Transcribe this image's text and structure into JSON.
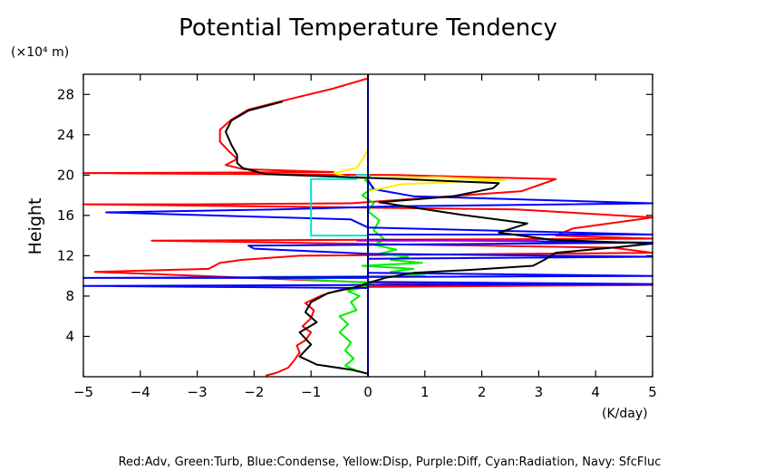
{
  "chart_data": {
    "type": "line",
    "title": "Potential Temperature Tendency",
    "ylabel": "Height",
    "y_unit": "(×10⁴ m)",
    "x_unit": "(K/day)",
    "xlim": [
      -5,
      5
    ],
    "ylim": [
      0,
      30
    ],
    "x_ticks": [
      -5,
      -4,
      -3,
      -2,
      -1,
      0,
      1,
      2,
      3,
      4,
      5
    ],
    "y_ticks": [
      4,
      8,
      12,
      16,
      20,
      24,
      28
    ],
    "grid": false,
    "legend_text": "Red:Adv, Green:Turb, Blue:Condense, Yellow:Disp, Purple:Diff, Cyan:Radiation, Navy: SfcFluc",
    "series": [
      {
        "name": "Adv",
        "color": "#ff0000",
        "points": [
          [
            -1.8,
            0.1
          ],
          [
            -1.6,
            0.4
          ],
          [
            -1.4,
            0.9
          ],
          [
            -1.3,
            1.6
          ],
          [
            -1.2,
            2.4
          ],
          [
            -1.25,
            3.1
          ],
          [
            -1.1,
            3.6
          ],
          [
            -1.0,
            4.4
          ],
          [
            -1.15,
            5.0
          ],
          [
            -1.0,
            5.8
          ],
          [
            -0.95,
            6.6
          ],
          [
            -1.1,
            7.3
          ],
          [
            -0.8,
            8.1
          ],
          [
            -0.5,
            8.6
          ],
          [
            -0.1,
            8.9
          ],
          [
            5.0,
            9.1
          ],
          [
            0.3,
            9.3
          ],
          [
            -4.8,
            10.4
          ],
          [
            -2.8,
            10.7
          ],
          [
            -2.6,
            11.3
          ],
          [
            -2.2,
            11.6
          ],
          [
            -1.2,
            12.0
          ],
          [
            5.0,
            12.3
          ],
          [
            4.3,
            12.8
          ],
          [
            -3.8,
            13.5
          ],
          [
            5.0,
            13.7
          ],
          [
            3.3,
            14.0
          ],
          [
            3.6,
            14.7
          ],
          [
            5.0,
            15.8
          ],
          [
            2.6,
            16.6
          ],
          [
            -5.0,
            17.1
          ],
          [
            -3.1,
            17.1
          ],
          [
            -0.3,
            17.2
          ],
          [
            2.7,
            18.4
          ],
          [
            3.0,
            19.0
          ],
          [
            3.3,
            19.6
          ],
          [
            0.5,
            20.0
          ],
          [
            -5.0,
            20.2
          ],
          [
            -0.6,
            20.3
          ],
          [
            -2.2,
            20.6
          ],
          [
            -2.5,
            21.0
          ],
          [
            -2.3,
            21.6
          ],
          [
            -2.45,
            22.4
          ],
          [
            -2.6,
            23.3
          ],
          [
            -2.6,
            24.5
          ],
          [
            -2.4,
            25.5
          ],
          [
            -2.1,
            26.5
          ],
          [
            -1.4,
            27.5
          ],
          [
            -0.6,
            28.6
          ],
          [
            0.0,
            29.6
          ]
        ]
      },
      {
        "name": "Turb",
        "color": "#00ee00",
        "points": [
          [
            0.0,
            0.3
          ],
          [
            -0.2,
            0.6
          ],
          [
            -0.4,
            1.1
          ],
          [
            -0.25,
            1.8
          ],
          [
            -0.4,
            2.6
          ],
          [
            -0.3,
            3.4
          ],
          [
            -0.5,
            4.4
          ],
          [
            -0.35,
            5.2
          ],
          [
            -0.5,
            6.0
          ],
          [
            -0.2,
            6.6
          ],
          [
            -0.3,
            7.4
          ],
          [
            -0.15,
            8.0
          ],
          [
            -0.35,
            8.5
          ],
          [
            -0.05,
            8.9
          ],
          [
            0.1,
            9.3
          ],
          [
            -1.9,
            9.9
          ],
          [
            1.0,
            10.0
          ],
          [
            0.4,
            10.4
          ],
          [
            0.8,
            10.7
          ],
          [
            -0.1,
            11.0
          ],
          [
            0.95,
            11.3
          ],
          [
            0.4,
            11.6
          ],
          [
            0.7,
            11.9
          ],
          [
            0.2,
            12.2
          ],
          [
            0.5,
            12.6
          ],
          [
            0.1,
            13.1
          ],
          [
            0.3,
            13.6
          ],
          [
            0.1,
            14.5
          ],
          [
            0.2,
            15.5
          ],
          [
            0.0,
            16.4
          ],
          [
            0.1,
            17.2
          ],
          [
            -0.1,
            18.0
          ],
          [
            0.1,
            18.8
          ],
          [
            -0.05,
            19.5
          ],
          [
            0.05,
            20.0
          ]
        ]
      },
      {
        "name": "Condense",
        "color": "#0000ff",
        "points": [
          [
            0.0,
            0.1
          ],
          [
            0.0,
            8.8
          ],
          [
            -5.0,
            9.0
          ],
          [
            5.0,
            9.2
          ],
          [
            0.0,
            9.4
          ],
          [
            0.0,
            9.8
          ],
          [
            -5.0,
            9.8
          ],
          [
            5.0,
            10.0
          ],
          [
            0.0,
            10.3
          ],
          [
            0.0,
            11.7
          ],
          [
            5.0,
            11.9
          ],
          [
            0.0,
            12.2
          ],
          [
            -2.0,
            12.7
          ],
          [
            -2.1,
            13.0
          ],
          [
            5.0,
            13.3
          ],
          [
            0.0,
            13.6
          ],
          [
            0.0,
            14.1
          ],
          [
            5.0,
            14.1
          ],
          [
            0.0,
            14.8
          ],
          [
            -0.3,
            15.6
          ],
          [
            -4.6,
            16.3
          ],
          [
            -1.6,
            16.6
          ],
          [
            0.5,
            16.9
          ],
          [
            5.0,
            17.2
          ],
          [
            0.8,
            17.9
          ],
          [
            0.1,
            18.6
          ],
          [
            0.0,
            19.5
          ]
        ]
      },
      {
        "name": "Disp",
        "color": "#ffee00",
        "points": [
          [
            0.0,
            18.4
          ],
          [
            0.6,
            19.1
          ],
          [
            2.4,
            19.5
          ],
          [
            1.2,
            19.8
          ],
          [
            -0.3,
            19.7
          ],
          [
            -0.6,
            20.2
          ],
          [
            -0.2,
            20.7
          ],
          [
            -0.1,
            21.5
          ],
          [
            0.0,
            22.5
          ],
          [
            0.0,
            23.5
          ]
        ]
      },
      {
        "name": "Diff",
        "color": "#aa00cc",
        "points": [
          [
            -0.2,
            13.5
          ],
          [
            1.5,
            13.5
          ],
          [
            3.0,
            13.5
          ]
        ]
      },
      {
        "name": "Radiation",
        "color": "#00dddd",
        "points": [
          [
            0.0,
            14.0
          ],
          [
            -1.0,
            14.0
          ],
          [
            -1.0,
            19.6
          ],
          [
            -0.2,
            19.6
          ],
          [
            -0.2,
            20.0
          ],
          [
            0.0,
            20.0
          ]
        ]
      },
      {
        "name": "SfcFluc",
        "color": "#000080",
        "points": [
          [
            0.0,
            0.0
          ],
          [
            0.0,
            30.0
          ]
        ]
      },
      {
        "name": "",
        "color": "#000000",
        "points": [
          [
            0.0,
            0.3
          ],
          [
            -0.3,
            0.7
          ],
          [
            -0.9,
            1.2
          ],
          [
            -1.2,
            2.0
          ],
          [
            -1.0,
            3.2
          ],
          [
            -1.2,
            4.4
          ],
          [
            -0.9,
            5.4
          ],
          [
            -1.1,
            6.4
          ],
          [
            -1.0,
            7.4
          ],
          [
            -0.7,
            8.3
          ],
          [
            -0.2,
            8.9
          ],
          [
            0.0,
            9.3
          ],
          [
            0.3,
            9.8
          ],
          [
            0.8,
            10.3
          ],
          [
            1.8,
            10.6
          ],
          [
            2.9,
            11.0
          ],
          [
            3.1,
            11.6
          ],
          [
            3.3,
            12.3
          ],
          [
            4.3,
            12.8
          ],
          [
            5.0,
            13.2
          ],
          [
            3.2,
            13.6
          ],
          [
            2.3,
            14.3
          ],
          [
            2.8,
            15.2
          ],
          [
            1.6,
            16.1
          ],
          [
            0.9,
            16.7
          ],
          [
            0.2,
            17.3
          ],
          [
            1.5,
            17.9
          ],
          [
            2.2,
            18.7
          ],
          [
            2.3,
            19.2
          ],
          [
            0.6,
            19.6
          ],
          [
            -1.8,
            20.1
          ],
          [
            -2.2,
            20.7
          ],
          [
            -2.3,
            21.2
          ],
          [
            -2.3,
            22.0
          ],
          [
            -2.4,
            23.0
          ],
          [
            -2.5,
            24.3
          ],
          [
            -2.4,
            25.4
          ],
          [
            -2.1,
            26.4
          ],
          [
            -1.5,
            27.3
          ]
        ]
      }
    ]
  }
}
